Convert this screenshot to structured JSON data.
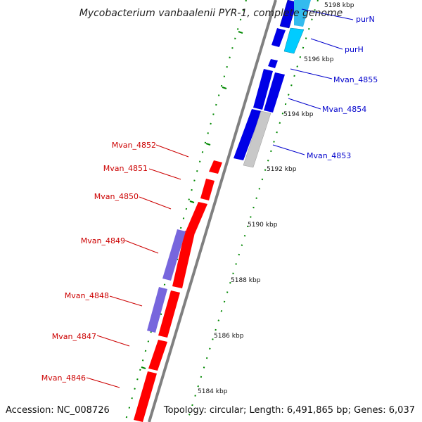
{
  "title": "Mycobacterium vanbaalenii PYR-1, complete genome",
  "accession": "Accession: NC_008726",
  "topology": "Topology: circular; Length: 6,491,865 bp; Genes: 6,037",
  "colors": {
    "backbone": "#808080",
    "forward_gene": "#0000e6",
    "forward_gene_alt": "#33bbee",
    "reverse_gene": "#ff0000",
    "reverse_gene_alt": "#7766dd",
    "rna_gene": "#c8c8c8",
    "tick": "#008800",
    "forward_label": "#0000cc",
    "reverse_label": "#cc0000"
  },
  "scale_labels": [
    "5198 kbp",
    "5196 kbp",
    "5194 kbp",
    "5192 kbp",
    "5190 kbp",
    "5188 kbp",
    "5186 kbp",
    "5184 kbp"
  ],
  "forward_labels": [
    "purN",
    "purH",
    "Mvan_4855",
    "Mvan_4854",
    "Mvan_4853"
  ],
  "reverse_labels": [
    "Mvan_4852",
    "Mvan_4851",
    "Mvan_4850",
    "Mvan_4849",
    "Mvan_4848",
    "Mvan_4847",
    "Mvan_4846"
  ]
}
